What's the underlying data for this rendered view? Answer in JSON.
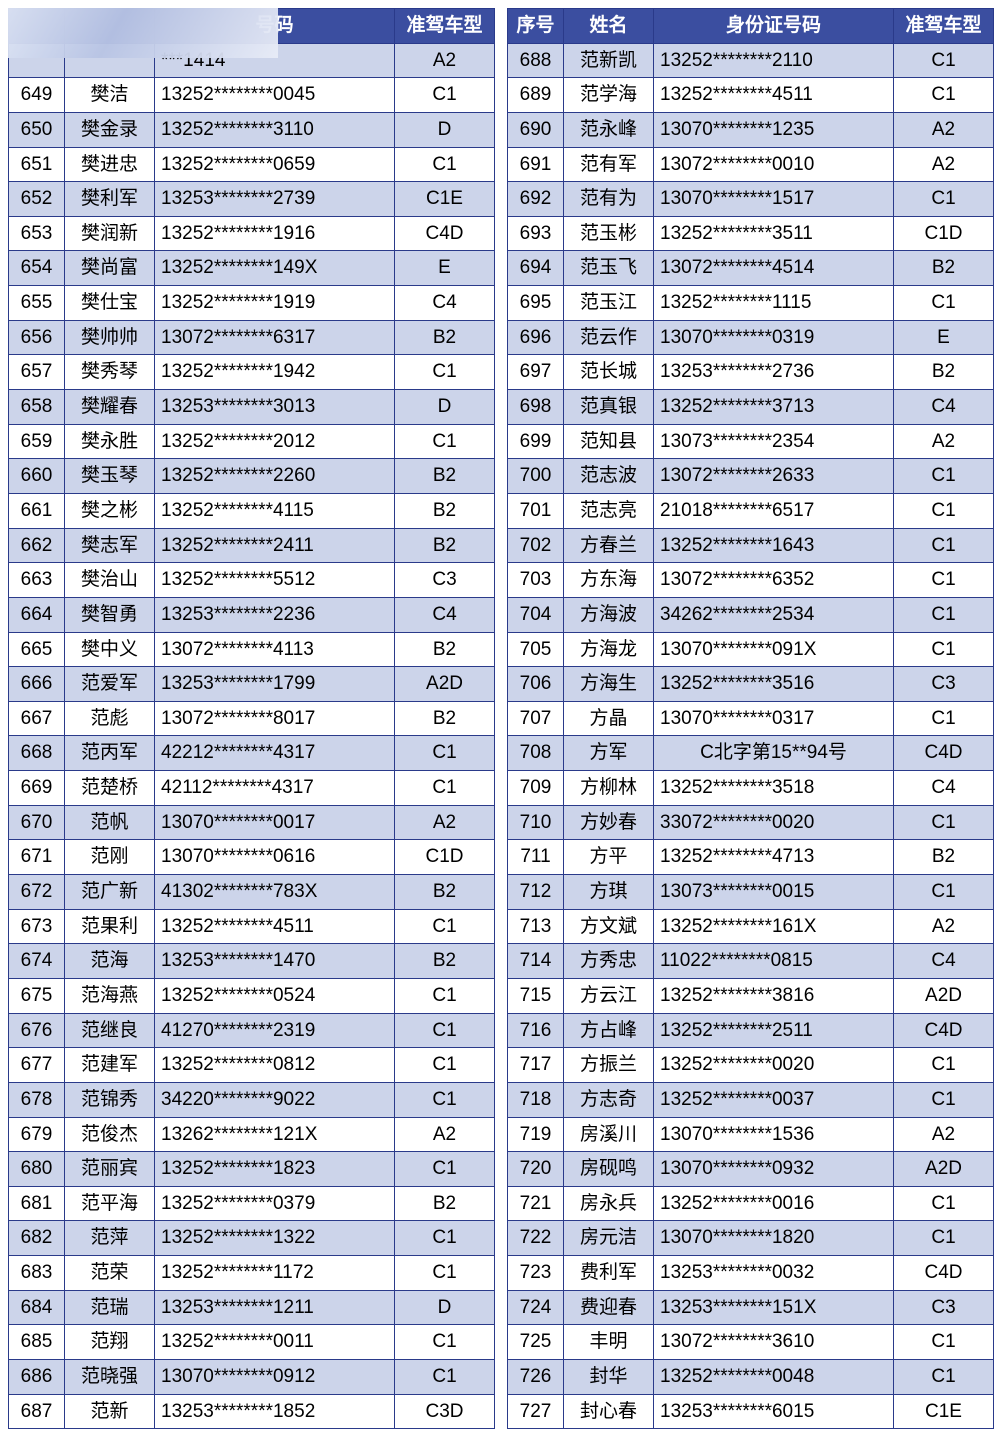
{
  "headers": {
    "seq": "序号",
    "name": "姓名",
    "id": "身份证号码",
    "type": "准驾车型"
  },
  "partialHeaderLeft": {
    "id_fragment": "号码",
    "type": "准驾车型"
  },
  "left": [
    {
      "seq": "",
      "name": "",
      "id": "***1414",
      "type": "A2"
    },
    {
      "seq": "649",
      "name": "樊洁",
      "id": "13252********0045",
      "type": "C1"
    },
    {
      "seq": "650",
      "name": "樊金录",
      "id": "13252********3110",
      "type": "D"
    },
    {
      "seq": "651",
      "name": "樊进忠",
      "id": "13252********0659",
      "type": "C1"
    },
    {
      "seq": "652",
      "name": "樊利军",
      "id": "13253********2739",
      "type": "C1E"
    },
    {
      "seq": "653",
      "name": "樊润新",
      "id": "13252********1916",
      "type": "C4D"
    },
    {
      "seq": "654",
      "name": "樊尚富",
      "id": "13252********149X",
      "type": "E"
    },
    {
      "seq": "655",
      "name": "樊仕宝",
      "id": "13252********1919",
      "type": "C4"
    },
    {
      "seq": "656",
      "name": "樊帅帅",
      "id": "13072********6317",
      "type": "B2"
    },
    {
      "seq": "657",
      "name": "樊秀琴",
      "id": "13252********1942",
      "type": "C1"
    },
    {
      "seq": "658",
      "name": "樊耀春",
      "id": "13253********3013",
      "type": "D"
    },
    {
      "seq": "659",
      "name": "樊永胜",
      "id": "13252********2012",
      "type": "C1"
    },
    {
      "seq": "660",
      "name": "樊玉琴",
      "id": "13252********2260",
      "type": "B2"
    },
    {
      "seq": "661",
      "name": "樊之彬",
      "id": "13252********4115",
      "type": "B2"
    },
    {
      "seq": "662",
      "name": "樊志军",
      "id": "13252********2411",
      "type": "B2"
    },
    {
      "seq": "663",
      "name": "樊治山",
      "id": "13252********5512",
      "type": "C3"
    },
    {
      "seq": "664",
      "name": "樊智勇",
      "id": "13253********2236",
      "type": "C4"
    },
    {
      "seq": "665",
      "name": "樊中义",
      "id": "13072********4113",
      "type": "B2"
    },
    {
      "seq": "666",
      "name": "范爱军",
      "id": "13253********1799",
      "type": "A2D"
    },
    {
      "seq": "667",
      "name": "范彪",
      "id": "13072********8017",
      "type": "B2"
    },
    {
      "seq": "668",
      "name": "范丙军",
      "id": "42212********4317",
      "type": "C1"
    },
    {
      "seq": "669",
      "name": "范楚桥",
      "id": "42112********4317",
      "type": "C1"
    },
    {
      "seq": "670",
      "name": "范帆",
      "id": "13070********0017",
      "type": "A2"
    },
    {
      "seq": "671",
      "name": "范刚",
      "id": "13070********0616",
      "type": "C1D"
    },
    {
      "seq": "672",
      "name": "范广新",
      "id": "41302********783X",
      "type": "B2"
    },
    {
      "seq": "673",
      "name": "范果利",
      "id": "13252********4511",
      "type": "C1"
    },
    {
      "seq": "674",
      "name": "范海",
      "id": "13253********1470",
      "type": "B2"
    },
    {
      "seq": "675",
      "name": "范海燕",
      "id": "13252********0524",
      "type": "C1"
    },
    {
      "seq": "676",
      "name": "范继良",
      "id": "41270********2319",
      "type": "C1"
    },
    {
      "seq": "677",
      "name": "范建军",
      "id": "13252********0812",
      "type": "C1"
    },
    {
      "seq": "678",
      "name": "范锦秀",
      "id": "34220********9022",
      "type": "C1"
    },
    {
      "seq": "679",
      "name": "范俊杰",
      "id": "13262********121X",
      "type": "A2"
    },
    {
      "seq": "680",
      "name": "范丽宾",
      "id": "13252********1823",
      "type": "C1"
    },
    {
      "seq": "681",
      "name": "范平海",
      "id": "13252********0379",
      "type": "B2"
    },
    {
      "seq": "682",
      "name": "范萍",
      "id": "13252********1322",
      "type": "C1"
    },
    {
      "seq": "683",
      "name": "范荣",
      "id": "13252********1172",
      "type": "C1"
    },
    {
      "seq": "684",
      "name": "范瑞",
      "id": "13253********1211",
      "type": "D"
    },
    {
      "seq": "685",
      "name": "范翔",
      "id": "13252********0011",
      "type": "C1"
    },
    {
      "seq": "686",
      "name": "范晓强",
      "id": "13070********0912",
      "type": "C1"
    },
    {
      "seq": "687",
      "name": "范新",
      "id": "13253********1852",
      "type": "C3D"
    }
  ],
  "right": [
    {
      "seq": "688",
      "name": "范新凯",
      "id": "13252********2110",
      "type": "C1"
    },
    {
      "seq": "689",
      "name": "范学海",
      "id": "13252********4511",
      "type": "C1"
    },
    {
      "seq": "690",
      "name": "范永峰",
      "id": "13070********1235",
      "type": "A2"
    },
    {
      "seq": "691",
      "name": "范有军",
      "id": "13072********0010",
      "type": "A2"
    },
    {
      "seq": "692",
      "name": "范有为",
      "id": "13070********1517",
      "type": "C1"
    },
    {
      "seq": "693",
      "name": "范玉彬",
      "id": "13252********3511",
      "type": "C1D"
    },
    {
      "seq": "694",
      "name": "范玉飞",
      "id": "13072********4514",
      "type": "B2"
    },
    {
      "seq": "695",
      "name": "范玉江",
      "id": "13252********1115",
      "type": "C1"
    },
    {
      "seq": "696",
      "name": "范云作",
      "id": "13070********0319",
      "type": "E"
    },
    {
      "seq": "697",
      "name": "范长城",
      "id": "13253********2736",
      "type": "B2"
    },
    {
      "seq": "698",
      "name": "范真银",
      "id": "13252********3713",
      "type": "C4"
    },
    {
      "seq": "699",
      "name": "范知县",
      "id": "13073********2354",
      "type": "A2"
    },
    {
      "seq": "700",
      "name": "范志波",
      "id": "13072********2633",
      "type": "C1"
    },
    {
      "seq": "701",
      "name": "范志亮",
      "id": "21018********6517",
      "type": "C1"
    },
    {
      "seq": "702",
      "name": "方春兰",
      "id": "13252********1643",
      "type": "C1"
    },
    {
      "seq": "703",
      "name": "方东海",
      "id": "13072********6352",
      "type": "C1"
    },
    {
      "seq": "704",
      "name": "方海波",
      "id": "34262********2534",
      "type": "C1"
    },
    {
      "seq": "705",
      "name": "方海龙",
      "id": "13070********091X",
      "type": "C1"
    },
    {
      "seq": "706",
      "name": "方海生",
      "id": "13252********3516",
      "type": "C3"
    },
    {
      "seq": "707",
      "name": "方晶",
      "id": "13070********0317",
      "type": "C1"
    },
    {
      "seq": "708",
      "name": "方军",
      "id": "C北字第15**94号",
      "type": "C4D",
      "center": true
    },
    {
      "seq": "709",
      "name": "方柳林",
      "id": "13252********3518",
      "type": "C4"
    },
    {
      "seq": "710",
      "name": "方妙春",
      "id": "33072********0020",
      "type": "C1"
    },
    {
      "seq": "711",
      "name": "方平",
      "id": "13252********4713",
      "type": "B2"
    },
    {
      "seq": "712",
      "name": "方琪",
      "id": "13073********0015",
      "type": "C1"
    },
    {
      "seq": "713",
      "name": "方文斌",
      "id": "13252********161X",
      "type": "A2"
    },
    {
      "seq": "714",
      "name": "方秀忠",
      "id": "11022********0815",
      "type": "C4"
    },
    {
      "seq": "715",
      "name": "方云江",
      "id": "13252********3816",
      "type": "A2D"
    },
    {
      "seq": "716",
      "name": "方占峰",
      "id": "13252********2511",
      "type": "C4D"
    },
    {
      "seq": "717",
      "name": "方振兰",
      "id": "13252********0020",
      "type": "C1"
    },
    {
      "seq": "718",
      "name": "方志奇",
      "id": "13252********0037",
      "type": "C1"
    },
    {
      "seq": "719",
      "name": "房溪川",
      "id": "13070********1536",
      "type": "A2"
    },
    {
      "seq": "720",
      "name": "房砚鸣",
      "id": "13070********0932",
      "type": "A2D"
    },
    {
      "seq": "721",
      "name": "房永兵",
      "id": "13252********0016",
      "type": "C1"
    },
    {
      "seq": "722",
      "name": "房元洁",
      "id": "13070********1820",
      "type": "C1"
    },
    {
      "seq": "723",
      "name": "费利军",
      "id": "13253********0032",
      "type": "C4D"
    },
    {
      "seq": "724",
      "name": "费迎春",
      "id": "13253********151X",
      "type": "C3"
    },
    {
      "seq": "725",
      "name": "丰明",
      "id": "13072********3610",
      "type": "C1"
    },
    {
      "seq": "726",
      "name": "封华",
      "id": "13252********0048",
      "type": "C1"
    },
    {
      "seq": "727",
      "name": "封心春",
      "id": "13253********6015",
      "type": "C1E"
    }
  ]
}
